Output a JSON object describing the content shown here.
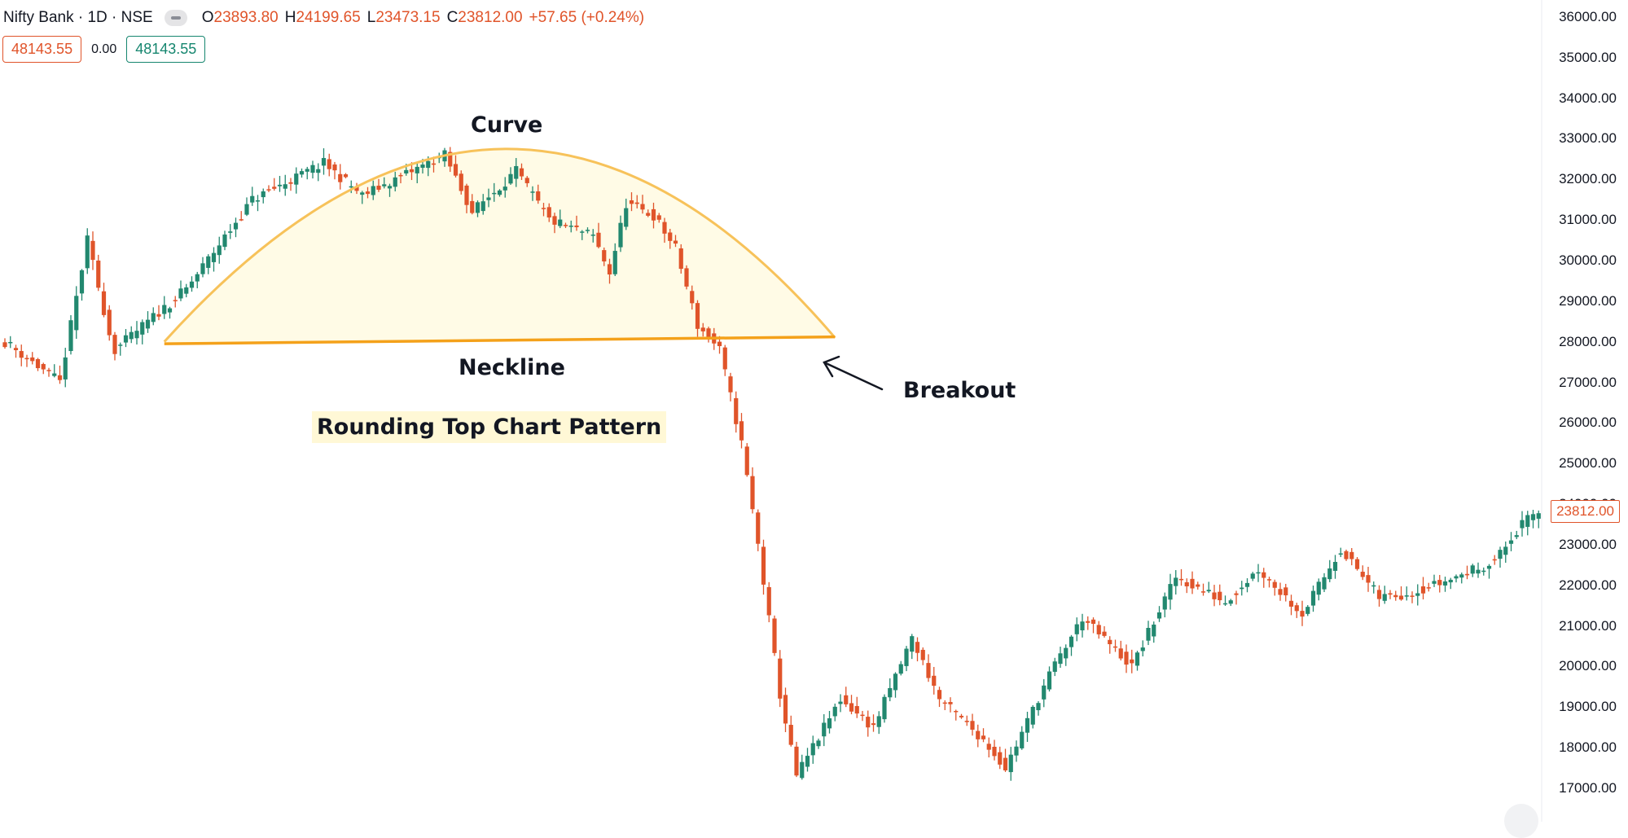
{
  "legend": {
    "symbol": "Nifty Bank · 1D · NSE",
    "open_key": "O",
    "open": "23893.80",
    "high_key": "H",
    "high": "24199.65",
    "low_key": "L",
    "low": "23473.15",
    "close_key": "C",
    "close": "23812.00",
    "change": "+57.65 (+0.24%)"
  },
  "trade": {
    "sell": "48143.55",
    "spread": "0.00",
    "buy": "48143.55"
  },
  "annotations": {
    "curve": "Curve",
    "neckline": "Neckline",
    "breakout": "Breakout",
    "pattern": "Rounding Top Chart Pattern"
  },
  "colors": {
    "up": "#22886f",
    "down": "#e0542a",
    "curve": "#f7c25a",
    "neckline": "#f4a11a",
    "fill": "#fffbe6",
    "text": "#131722"
  },
  "chart_data": {
    "type": "candlestick",
    "price_axis": {
      "range": [
        16600,
        36300
      ],
      "ticks": [
        17000,
        18000,
        19000,
        20000,
        21000,
        22000,
        23000,
        24000,
        25000,
        26000,
        27000,
        28000,
        29000,
        30000,
        31000,
        32000,
        33000,
        34000,
        35000,
        36000
      ],
      "tick_labels": [
        "17000.00",
        "18000.00",
        "19000.00",
        "20000.00",
        "21000.00",
        "22000.00",
        "23000.00",
        "24000.00",
        "25000.00",
        "26000.00",
        "27000.00",
        "28000.00",
        "29000.00",
        "30000.00",
        "31000.00",
        "32000.00",
        "33000.00",
        "34000.00",
        "35000.00",
        "36000.00"
      ],
      "last_price": 23812,
      "last_price_label": "23812.00"
    },
    "close_path": [
      [
        0,
        28000
      ],
      [
        10,
        27000
      ],
      [
        15,
        30500
      ],
      [
        19,
        28200
      ],
      [
        20,
        27800
      ],
      [
        33,
        29300
      ],
      [
        45,
        31500
      ],
      [
        58,
        32400
      ],
      [
        65,
        31600
      ],
      [
        80,
        32600
      ],
      [
        85,
        31200
      ],
      [
        93,
        32200
      ],
      [
        99,
        31000
      ],
      [
        107,
        30600
      ],
      [
        110,
        29700
      ],
      [
        113,
        31400
      ],
      [
        118,
        31100
      ],
      [
        122,
        30300
      ],
      [
        126,
        28400
      ],
      [
        130,
        27800
      ],
      [
        134,
        25500
      ],
      [
        137,
        23000
      ],
      [
        141,
        19300
      ],
      [
        144,
        17300
      ],
      [
        152,
        19200
      ],
      [
        158,
        18500
      ],
      [
        165,
        20700
      ],
      [
        170,
        19200
      ],
      [
        178,
        18200
      ],
      [
        182,
        17500
      ],
      [
        190,
        19800
      ],
      [
        196,
        21200
      ],
      [
        205,
        20000
      ],
      [
        213,
        22200
      ],
      [
        222,
        21600
      ],
      [
        228,
        22400
      ],
      [
        236,
        21300
      ],
      [
        243,
        22900
      ],
      [
        250,
        21700
      ],
      [
        255,
        21800
      ],
      [
        262,
        22100
      ],
      [
        271,
        22600
      ],
      [
        276,
        23500
      ],
      [
        279,
        23812
      ]
    ],
    "patterns": [
      {
        "name": "Curve",
        "type": "arc",
        "points": [
          [
            29,
            28000
          ],
          [
            91,
            32750
          ],
          [
            151,
            28100
          ]
        ]
      },
      {
        "name": "Neckline",
        "type": "line",
        "points": [
          [
            29,
            27950
          ],
          [
            151,
            28120
          ]
        ]
      }
    ]
  }
}
